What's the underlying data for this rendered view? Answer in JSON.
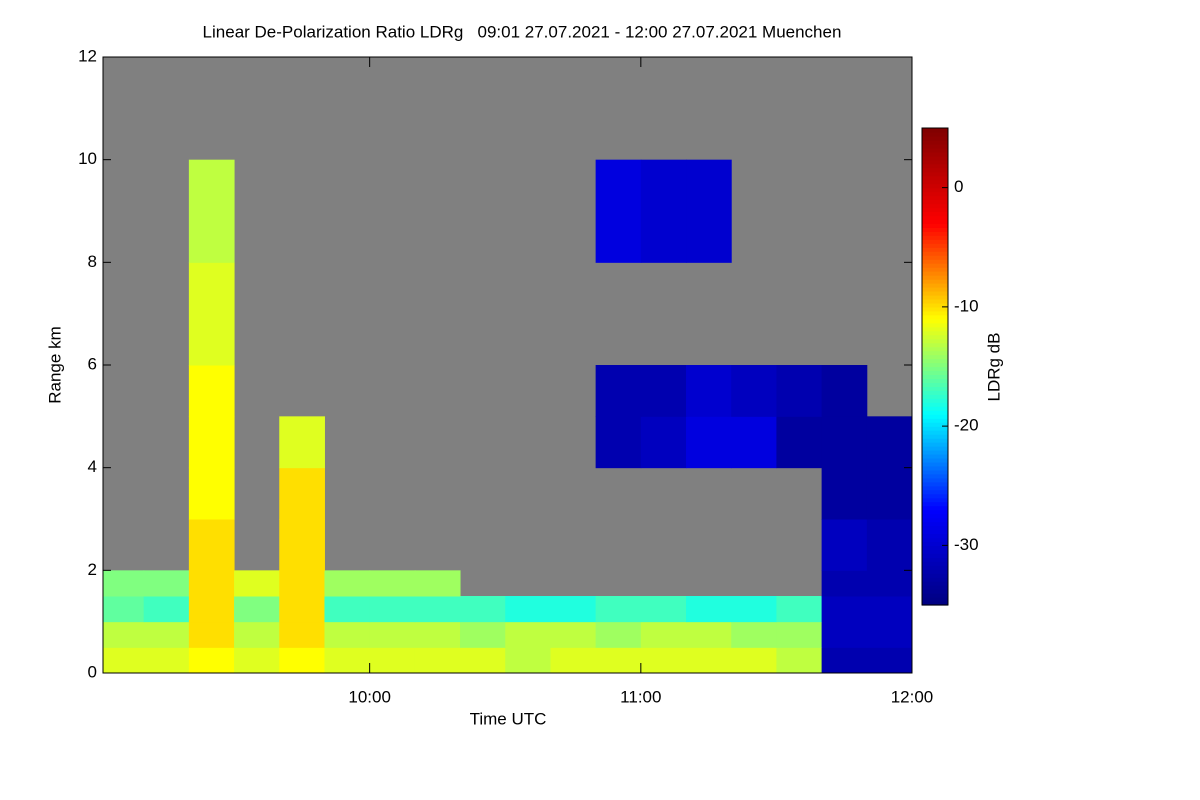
{
  "chart_data": {
    "type": "heatmap",
    "title": "Linear De-Polarization Ratio LDRg   09:01 27.07.2021 - 12:00 27.07.2021 Muenchen",
    "x_label": "Time UTC",
    "y_label": "Range km",
    "colorbar_label": "LDRg dB",
    "x_edges": [
      541,
      550,
      560,
      570,
      580,
      590,
      600,
      610,
      620,
      630,
      640,
      650,
      660,
      670,
      680,
      690,
      700,
      710,
      720
    ],
    "y_edges": [
      0,
      0.5,
      1,
      1.5,
      2,
      3,
      4,
      5,
      6,
      8,
      10,
      12
    ],
    "z": [
      [
        -12,
        -12,
        -11,
        -12,
        -11,
        -12,
        -12,
        -12,
        -12,
        -13,
        -12,
        -12,
        -12,
        -12,
        -12,
        -13,
        -32,
        -32
      ],
      [
        -13,
        -13,
        -10,
        -13,
        -10,
        -13,
        -13,
        -13,
        -14,
        -13,
        -13,
        -14,
        -13,
        -13,
        -14,
        -14,
        -31,
        -31
      ],
      [
        -16,
        -17,
        -10,
        -15,
        -10,
        -17,
        -17,
        -17,
        -17,
        -18,
        -18,
        -17,
        -17,
        -18,
        -18,
        -17,
        -31,
        -31
      ],
      [
        -15,
        -15,
        -10,
        -12,
        -10,
        -14,
        -14,
        -14,
        null,
        null,
        null,
        null,
        null,
        null,
        null,
        null,
        -32,
        -32
      ],
      [
        null,
        null,
        -10,
        null,
        -10,
        null,
        null,
        null,
        null,
        null,
        null,
        null,
        null,
        null,
        null,
        null,
        -31,
        -32
      ],
      [
        null,
        null,
        -11,
        null,
        -10,
        null,
        null,
        null,
        null,
        null,
        null,
        null,
        null,
        null,
        null,
        null,
        -33,
        -33
      ],
      [
        null,
        null,
        -11,
        null,
        -12,
        null,
        null,
        null,
        null,
        null,
        null,
        -32,
        -31,
        -29,
        -29,
        -33,
        -33,
        -33
      ],
      [
        null,
        null,
        -11,
        null,
        null,
        null,
        null,
        null,
        null,
        null,
        null,
        -32,
        -32,
        -30,
        -31,
        -32,
        -33,
        null
      ],
      [
        null,
        null,
        -12,
        null,
        null,
        null,
        null,
        null,
        null,
        null,
        null,
        null,
        null,
        null,
        null,
        null,
        null,
        null
      ],
      [
        null,
        null,
        -13,
        null,
        null,
        null,
        null,
        null,
        null,
        null,
        null,
        -29,
        -30,
        -30,
        null,
        null,
        null,
        null
      ],
      [
        null,
        null,
        null,
        null,
        null,
        null,
        null,
        null,
        null,
        null,
        null,
        null,
        null,
        null,
        null,
        null,
        null,
        null
      ]
    ],
    "xlim": [
      541,
      720
    ],
    "ylim": [
      0,
      12
    ],
    "xticks": [
      {
        "value": 600,
        "label": "10:00"
      },
      {
        "value": 660,
        "label": "11:00"
      },
      {
        "value": 720,
        "label": "12:00"
      }
    ],
    "yticks": [
      0,
      2,
      4,
      6,
      8,
      10,
      12
    ],
    "clim": [
      -35,
      5
    ],
    "cticks": [
      0,
      -10,
      -20,
      -30
    ],
    "colormap": [
      "#00007f",
      "#0000ff",
      "#00ffff",
      "#ffff00",
      "#ff0000",
      "#7f0000"
    ],
    "background": "#808080"
  }
}
